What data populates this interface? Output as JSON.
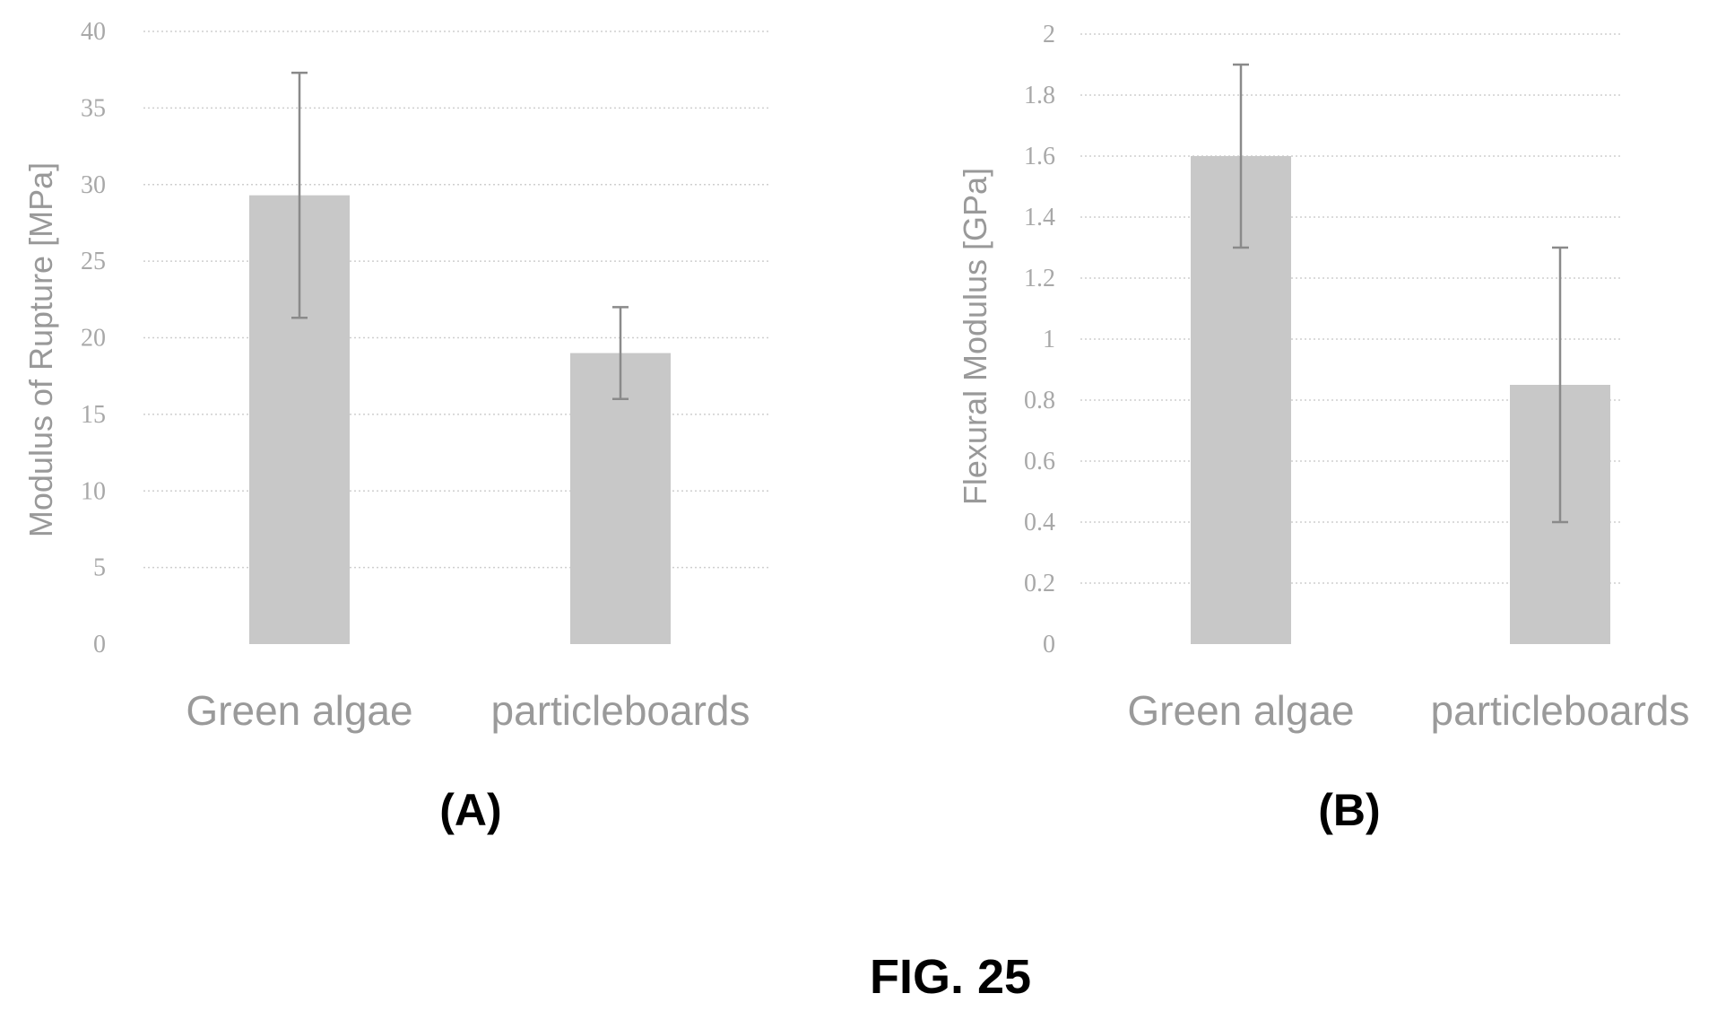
{
  "figure_caption": "FIG. 25",
  "chart_data": [
    {
      "panel_label": "(A)",
      "type": "bar",
      "ylabel": "Modulus of Rupture [MPa]",
      "xlabel": "",
      "categories": [
        "Green algae",
        "particleboards"
      ],
      "values": [
        29.3,
        19
      ],
      "error": [
        8,
        3
      ],
      "ylim": [
        0,
        40
      ],
      "yticks": [
        "0",
        "5",
        "10",
        "15",
        "20",
        "25",
        "30",
        "35",
        "40"
      ],
      "grid": true,
      "color": "#c8c8c8"
    },
    {
      "panel_label": "(B)",
      "type": "bar",
      "ylabel": "Flexural Modulus [GPa]",
      "xlabel": "",
      "categories": [
        "Green algae",
        "particleboards"
      ],
      "values": [
        1.6,
        0.85
      ],
      "error": [
        0.3,
        0.45
      ],
      "ylim": [
        0,
        2
      ],
      "yticks": [
        "0",
        "0.2",
        "0.4",
        "0.6",
        "0.8",
        "1",
        "1.2",
        "1.4",
        "1.6",
        "1.8",
        "2"
      ],
      "grid": true,
      "color": "#c8c8c8"
    }
  ]
}
